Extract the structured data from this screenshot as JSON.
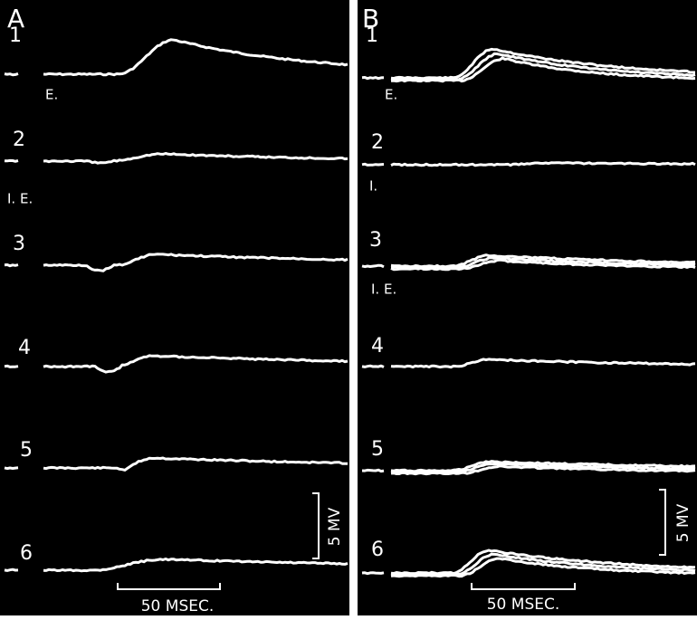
{
  "panels": [
    {
      "label": "A",
      "traces": [
        {
          "label": "1",
          "marker": "E."
        },
        {
          "label": "2",
          "marker": "I. E."
        },
        {
          "label": "3"
        },
        {
          "label": "4"
        },
        {
          "label": "5"
        },
        {
          "label": "6"
        }
      ],
      "scale": {
        "voltage": "5 MV",
        "time": "50 MSEC."
      }
    },
    {
      "label": "B",
      "traces": [
        {
          "label": "1",
          "marker": "E."
        },
        {
          "label": "2",
          "marker": "I."
        },
        {
          "label": "3",
          "marker": "I. E."
        },
        {
          "label": "4"
        },
        {
          "label": "5"
        },
        {
          "label": "6"
        }
      ],
      "scale": {
        "voltage": "5 MV",
        "time": "50 MSEC."
      }
    }
  ]
}
